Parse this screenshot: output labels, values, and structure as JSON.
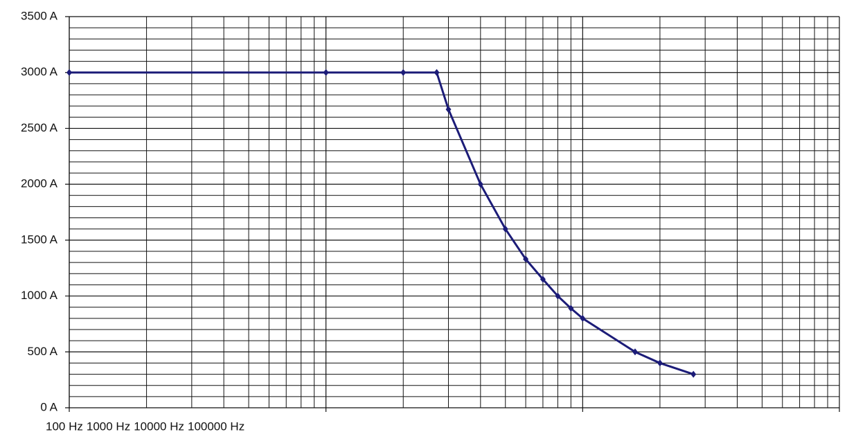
{
  "chart_data": {
    "type": "line",
    "log_x": true,
    "grid": true,
    "x": [
      100,
      1000,
      2000,
      2700,
      3000,
      4000,
      5000,
      6000,
      7000,
      8000,
      9000,
      10000,
      16000,
      20000,
      27000
    ],
    "series": [
      {
        "color": "#1c1c78",
        "values": [
          3000,
          3000,
          3000,
          3000,
          2670,
          2000,
          1600,
          1330,
          1150,
          1000,
          890,
          800,
          500,
          400,
          300
        ]
      }
    ],
    "xlim": [
      100,
      100000
    ],
    "xticks": [
      {
        "value": 100,
        "label": "100 Hz"
      },
      {
        "value": 1000,
        "label": "1000 Hz"
      },
      {
        "value": 10000,
        "label": "10000 Hz"
      },
      {
        "value": 100000,
        "label": "100000 Hz"
      }
    ],
    "xminor_ticks": [
      200,
      300,
      400,
      500,
      600,
      700,
      800,
      900,
      2000,
      3000,
      4000,
      5000,
      6000,
      7000,
      8000,
      9000,
      20000,
      30000,
      40000,
      50000,
      60000,
      70000,
      80000,
      90000
    ],
    "ylim": [
      0,
      3500
    ],
    "yticks": [
      {
        "value": 0,
        "label": "0 A"
      },
      {
        "value": 500,
        "label": "500 A"
      },
      {
        "value": 1000,
        "label": "1000 A"
      },
      {
        "value": 1500,
        "label": "1500 A"
      },
      {
        "value": 2000,
        "label": "2000 A"
      },
      {
        "value": 2500,
        "label": "2500 A"
      },
      {
        "value": 3000,
        "label": "3000 A"
      },
      {
        "value": 3500,
        "label": "3500 A"
      }
    ],
    "yminor_ticks": [
      100,
      200,
      300,
      400,
      600,
      700,
      800,
      900,
      1100,
      1200,
      1300,
      1400,
      1600,
      1700,
      1800,
      1900,
      2100,
      2200,
      2300,
      2400,
      2600,
      2700,
      2800,
      2900,
      3100,
      3200,
      3300,
      3400
    ]
  }
}
